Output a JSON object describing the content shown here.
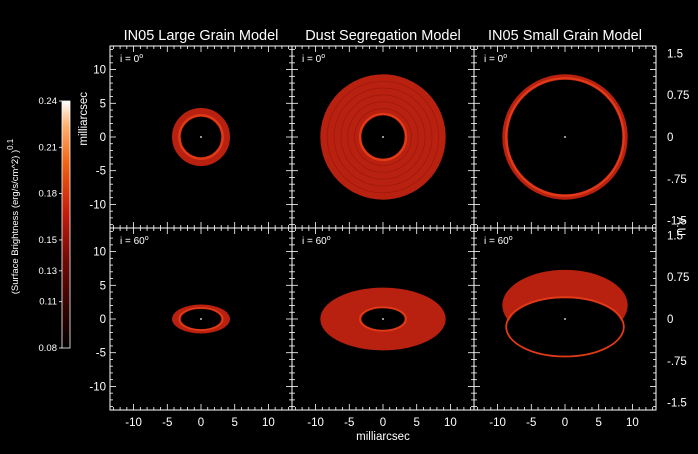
{
  "chart_data": {
    "type": "image",
    "panel_titles": [
      "IN05 Large Grain Model",
      "Dust Segregation Model",
      "IN05 Small Grain Model"
    ],
    "row_labels": [
      "i = 0",
      "i = 60"
    ],
    "degree_symbol": "o",
    "xlabel": "milliarcsec",
    "ylabel_left": "milliarcsec",
    "ylabel_right": "A.U.",
    "x_ticks": [
      -10,
      -5,
      0,
      5,
      10
    ],
    "x_tick_labels": [
      "-10",
      "-5",
      "0",
      "5",
      "10"
    ],
    "y_ticks": [
      10,
      5,
      0,
      -5,
      -10
    ],
    "y_tick_labels": [
      "10",
      "5",
      "0",
      "-5",
      "-10"
    ],
    "range_mas": [
      -13.5,
      13.5
    ],
    "au_ticks": [
      1.5,
      0.75,
      0,
      -0.75,
      -1.5
    ],
    "au_tick_labels": [
      "1.5",
      "0.75",
      "0",
      "-.75",
      "-1.5"
    ],
    "au_per_mas": 0.1208,
    "colorbar": {
      "label": "(Surface Brightness (erg/s/cm^2) )",
      "exponent": "0.1",
      "ticks": [
        0.08,
        0.11,
        0.13,
        0.15,
        0.18,
        0.21,
        0.24
      ],
      "tick_labels": [
        "0.08",
        "0.11",
        "0.13",
        "0.15",
        "0.18",
        "0.21",
        "0.24"
      ],
      "range": [
        0.08,
        0.24
      ]
    },
    "models": [
      {
        "name": "IN05 Large Grain Model",
        "inner_radius_mas": 3.0,
        "outer_radius_mas": 4.3,
        "brightness": 0.17
      },
      {
        "name": "Dust Segregation Model",
        "inner_radius_mas": 3.2,
        "outer_radius_mas": 9.3,
        "brightness": 0.16
      },
      {
        "name": "IN05 Small Grain Model",
        "inner_radius_mas": 8.5,
        "outer_radius_mas": 9.3,
        "brightness": 0.15
      }
    ],
    "inclinations_deg": [
      0,
      60
    ],
    "colors": {
      "ring": "#b8200f",
      "ring_bright": "#e03a18",
      "ring_dark": "#8a1208",
      "frame": "#ffffff",
      "background": "#000000"
    }
  }
}
